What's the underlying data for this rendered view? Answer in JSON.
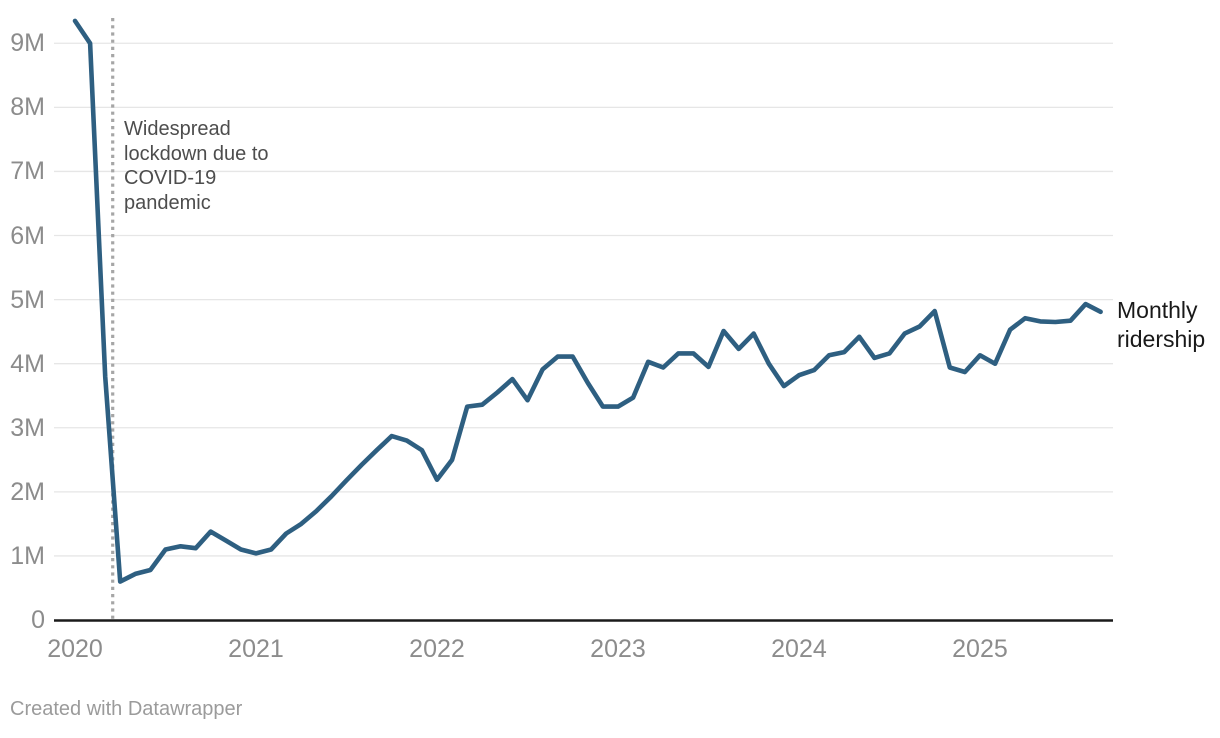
{
  "colors": {
    "background": "#ffffff",
    "line": "#2e5f81",
    "grid": "#e6e6e6",
    "axis": "#1a1a1a",
    "tick_text": "#8c8c8c",
    "annotation_line": "#a6a6a6",
    "annotation_text": "#4d4d4d",
    "series_label_text": "#191919",
    "footer_text": "#9b9b9b"
  },
  "annotation": {
    "text": "Widespread\nlockdown due to\nCOVID-19\npandemic"
  },
  "series_label": "Monthly\nridership",
  "footer": {
    "credit": "Created with Datawrapper"
  },
  "chart_data": {
    "type": "line",
    "title": "",
    "xlabel": "",
    "ylabel": "",
    "grid": "horizontal",
    "legend_position": "end-of-line-label",
    "ylim": [
      0,
      9.35
    ],
    "y_ticks": [
      0,
      1,
      2,
      3,
      4,
      5,
      6,
      7,
      8,
      9
    ],
    "y_tick_labels": [
      "0",
      "1M",
      "2M",
      "3M",
      "4M",
      "5M",
      "6M",
      "7M",
      "8M",
      "9M"
    ],
    "x_tick_month_indices": [
      0,
      12,
      24,
      36,
      48,
      60
    ],
    "x_tick_labels": [
      "2020",
      "2021",
      "2022",
      "2023",
      "2024",
      "2025"
    ],
    "unit": "millions of riders per month",
    "vline": {
      "month_index": 2.5,
      "x_label": "mid-March 2020",
      "style": "dotted",
      "label": "Widespread lockdown due to COVID-19 pandemic"
    },
    "series": [
      {
        "name": "Monthly ridership",
        "x": [
          "2020-01",
          "2020-02",
          "2020-03",
          "2020-04",
          "2020-05",
          "2020-06",
          "2020-07",
          "2020-08",
          "2020-09",
          "2020-10",
          "2020-11",
          "2020-12",
          "2021-01",
          "2021-02",
          "2021-03",
          "2021-04",
          "2021-05",
          "2021-06",
          "2021-07",
          "2021-08",
          "2021-09",
          "2021-10",
          "2021-11",
          "2021-12",
          "2022-01",
          "2022-02",
          "2022-03",
          "2022-04",
          "2022-05",
          "2022-06",
          "2022-07",
          "2022-08",
          "2022-09",
          "2022-10",
          "2022-11",
          "2022-12",
          "2023-01",
          "2023-02",
          "2023-03",
          "2023-04",
          "2023-05",
          "2023-06",
          "2023-07",
          "2023-08",
          "2023-09",
          "2023-10",
          "2023-11",
          "2023-12",
          "2024-01",
          "2024-02",
          "2024-03",
          "2024-04",
          "2024-05",
          "2024-06",
          "2024-07",
          "2024-08",
          "2024-09",
          "2024-10",
          "2024-11",
          "2024-12",
          "2025-01",
          "2025-02",
          "2025-03",
          "2025-04",
          "2025-05",
          "2025-06",
          "2025-07",
          "2025-08",
          "2025-09"
        ],
        "values_millions": [
          9.35,
          9.0,
          3.8,
          0.6,
          0.72,
          0.78,
          1.1,
          1.15,
          1.12,
          1.38,
          1.24,
          1.1,
          1.04,
          1.1,
          1.35,
          1.5,
          1.7,
          1.93,
          2.18,
          2.42,
          2.65,
          2.87,
          2.8,
          2.65,
          2.19,
          2.5,
          3.33,
          3.36,
          3.55,
          3.76,
          3.43,
          3.91,
          4.11,
          4.11,
          3.7,
          3.33,
          3.33,
          3.47,
          4.03,
          3.94,
          4.16,
          4.16,
          3.95,
          4.51,
          4.23,
          4.47,
          4.0,
          3.65,
          3.82,
          3.9,
          4.13,
          4.18,
          4.42,
          4.09,
          4.16,
          4.47,
          4.58,
          4.82,
          3.94,
          3.87,
          4.13,
          4.0,
          4.53,
          4.71,
          4.66,
          4.65,
          4.67,
          4.93,
          4.81
        ]
      }
    ]
  }
}
